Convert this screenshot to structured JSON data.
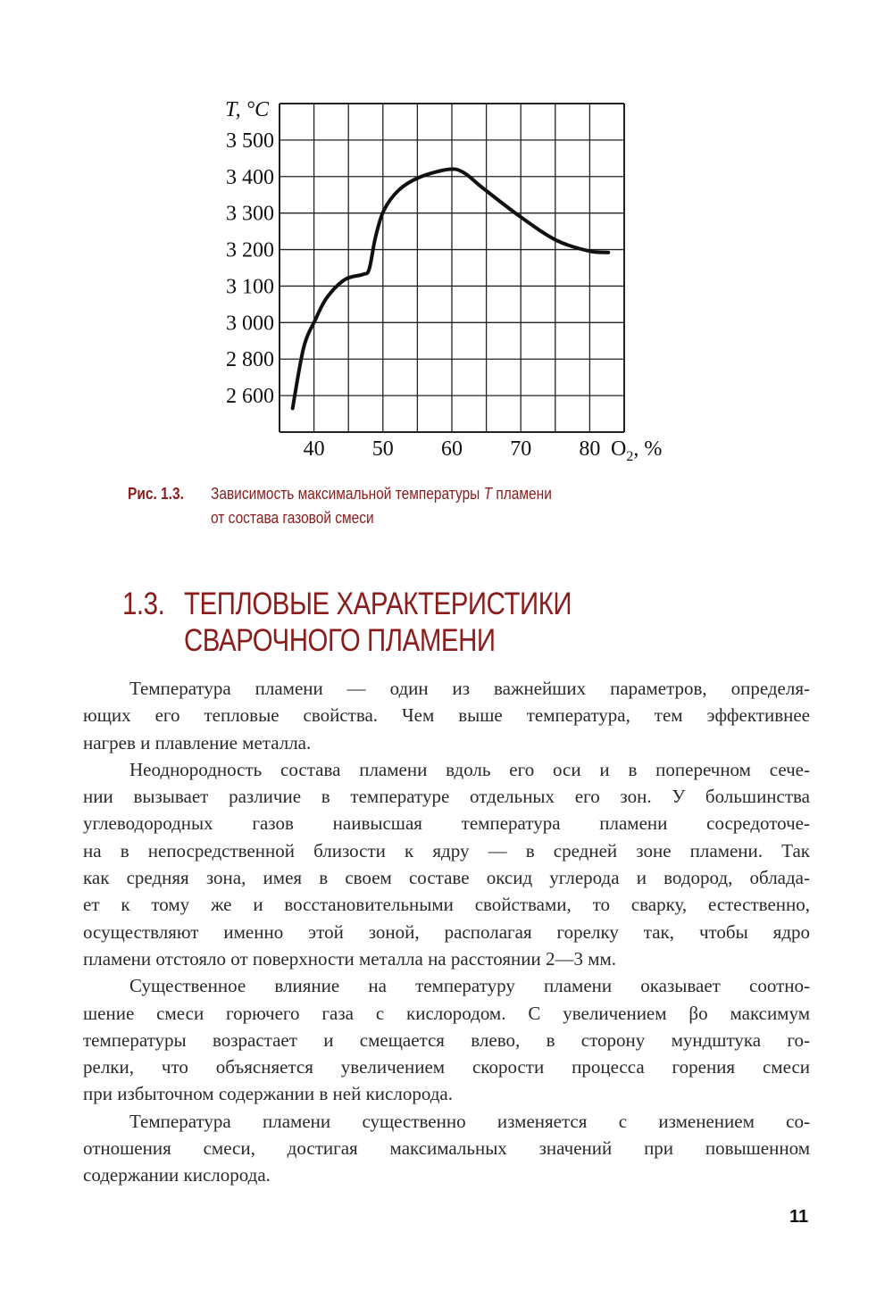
{
  "chart_data": {
    "type": "line",
    "ylabel": "T, °C",
    "xlabel": "O₂, %",
    "x_ticks": [
      {
        "value": 40,
        "label": "40"
      },
      {
        "value": 50,
        "label": "50"
      },
      {
        "value": 60,
        "label": "60"
      },
      {
        "value": 70,
        "label": "70"
      },
      {
        "value": 80,
        "label": "80"
      }
    ],
    "x_range": [
      35,
      85
    ],
    "y_ticks": [
      {
        "value": 3500,
        "label": "3 500"
      },
      {
        "value": 3400,
        "label": "3 400"
      },
      {
        "value": 3300,
        "label": "3 300"
      },
      {
        "value": 3200,
        "label": "3 200"
      },
      {
        "value": 3100,
        "label": "3 100"
      },
      {
        "value": 3000,
        "label": "3 000"
      },
      {
        "value": 2800,
        "label": "2 800"
      },
      {
        "value": 2600,
        "label": "2 600"
      }
    ],
    "y_scale": "non-uniform (100 °C steps above 3000, 200 °C steps below)",
    "grid": true,
    "series": [
      {
        "x": [
          36.9,
          38.5,
          40.2,
          41.9,
          44.5,
          47.1,
          48.0,
          48.9,
          50.1,
          52.3,
          55.3,
          59.6,
          61.8,
          64.4,
          70.0,
          75.2,
          79.9,
          82.7
        ],
        "y": [
          2530,
          2862,
          3008,
          3069,
          3118,
          3132,
          3146,
          3232,
          3306,
          3363,
          3398,
          3420,
          3410,
          3370,
          3289,
          3225,
          3196,
          3192
        ]
      }
    ]
  },
  "caption": {
    "label": "Рис. 1.3.",
    "line1_a": "Зависимость максимальной температуры ",
    "line1_var": "T",
    "line1_b": " пламени",
    "line2": "от состава газовой смеси"
  },
  "section": {
    "number": "1.3.",
    "title_line1": "ТЕПЛОВЫЕ ХАРАКТЕРИСТИКИ",
    "title_line2": "СВАРОЧНОГО ПЛАМЕНИ"
  },
  "body_lines": [
    "Температура пламени — один из важнейших параметров, определя-",
    "ющих его тепловые свойства. Чем выше температура, тем эффективнее",
    "нагрев и плавление металла.",
    "Неоднородность состава пламени вдоль его оси и в поперечном сече-",
    "нии вызывает различие в температуре отдельных его зон. У большинства",
    "углеводородных газов наивысшая температура пламени сосредоточе-",
    "на в непосредственной близости к ядру — в средней зоне пламени. Так",
    "как средняя зона, имея в своем составе оксид углерода и водород, облада-",
    "ет к тому же и восстановительными свойствами, то сварку, естественно,",
    "осуществляют именно этой зоной, располагая горелку так, чтобы ядро",
    "пламени отстояло от поверхности металла на расстоянии 2—3 мм.",
    "Существенное влияние на температуру пламени оказывает соотно-",
    "шение смеси горючего газа с кислородом. С увеличением βо максимум",
    "температуры возрастает и смещается влево, в сторону мундштука го-",
    "релки, что объясняется увеличением скорости процесса горения смеси",
    "при избыточном содержании в ней кислорода.",
    "Температура пламени существенно изменяется с изменением со-",
    "отношения смеси, достигая максимальных значений при повышенном",
    "содержании кислорода."
  ],
  "page_number": "11"
}
